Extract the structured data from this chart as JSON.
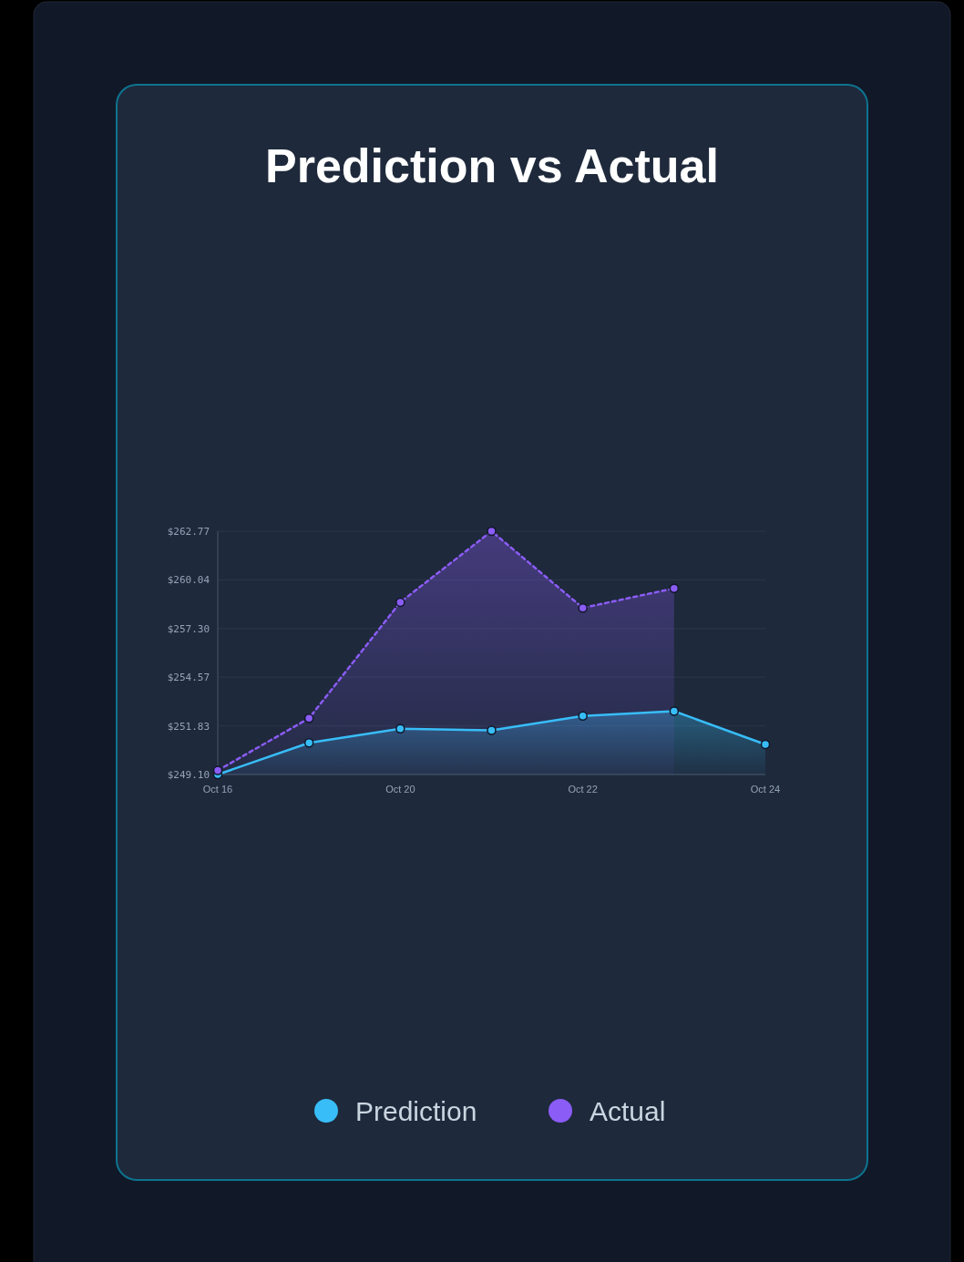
{
  "chart_data": {
    "type": "area",
    "title": "Prediction vs Actual",
    "categories": [
      "Oct 16",
      null,
      "Oct 20",
      null,
      "Oct 22",
      null,
      "Oct 24"
    ],
    "series": [
      {
        "name": "Prediction",
        "color": "#38bdf8",
        "line_style": "solid",
        "values": [
          249.1,
          250.88,
          251.67,
          251.58,
          252.39,
          252.66,
          250.79
        ]
      },
      {
        "name": "Actual",
        "color": "#8b5cf6",
        "line_style": "dashed",
        "values": [
          249.33,
          252.26,
          258.78,
          262.77,
          258.46,
          259.56,
          null
        ]
      }
    ],
    "ylim": [
      249.1,
      262.77
    ],
    "yticks": [
      {
        "value": 249.1,
        "label": "$249.10"
      },
      {
        "value": 251.83,
        "label": "$251.83"
      },
      {
        "value": 254.57,
        "label": "$254.57"
      },
      {
        "value": 257.3,
        "label": "$257.30"
      },
      {
        "value": 260.04,
        "label": "$260.04"
      },
      {
        "value": 262.77,
        "label": "$262.77"
      }
    ],
    "grid": "y",
    "legend": "bottom",
    "marker": "circle"
  }
}
